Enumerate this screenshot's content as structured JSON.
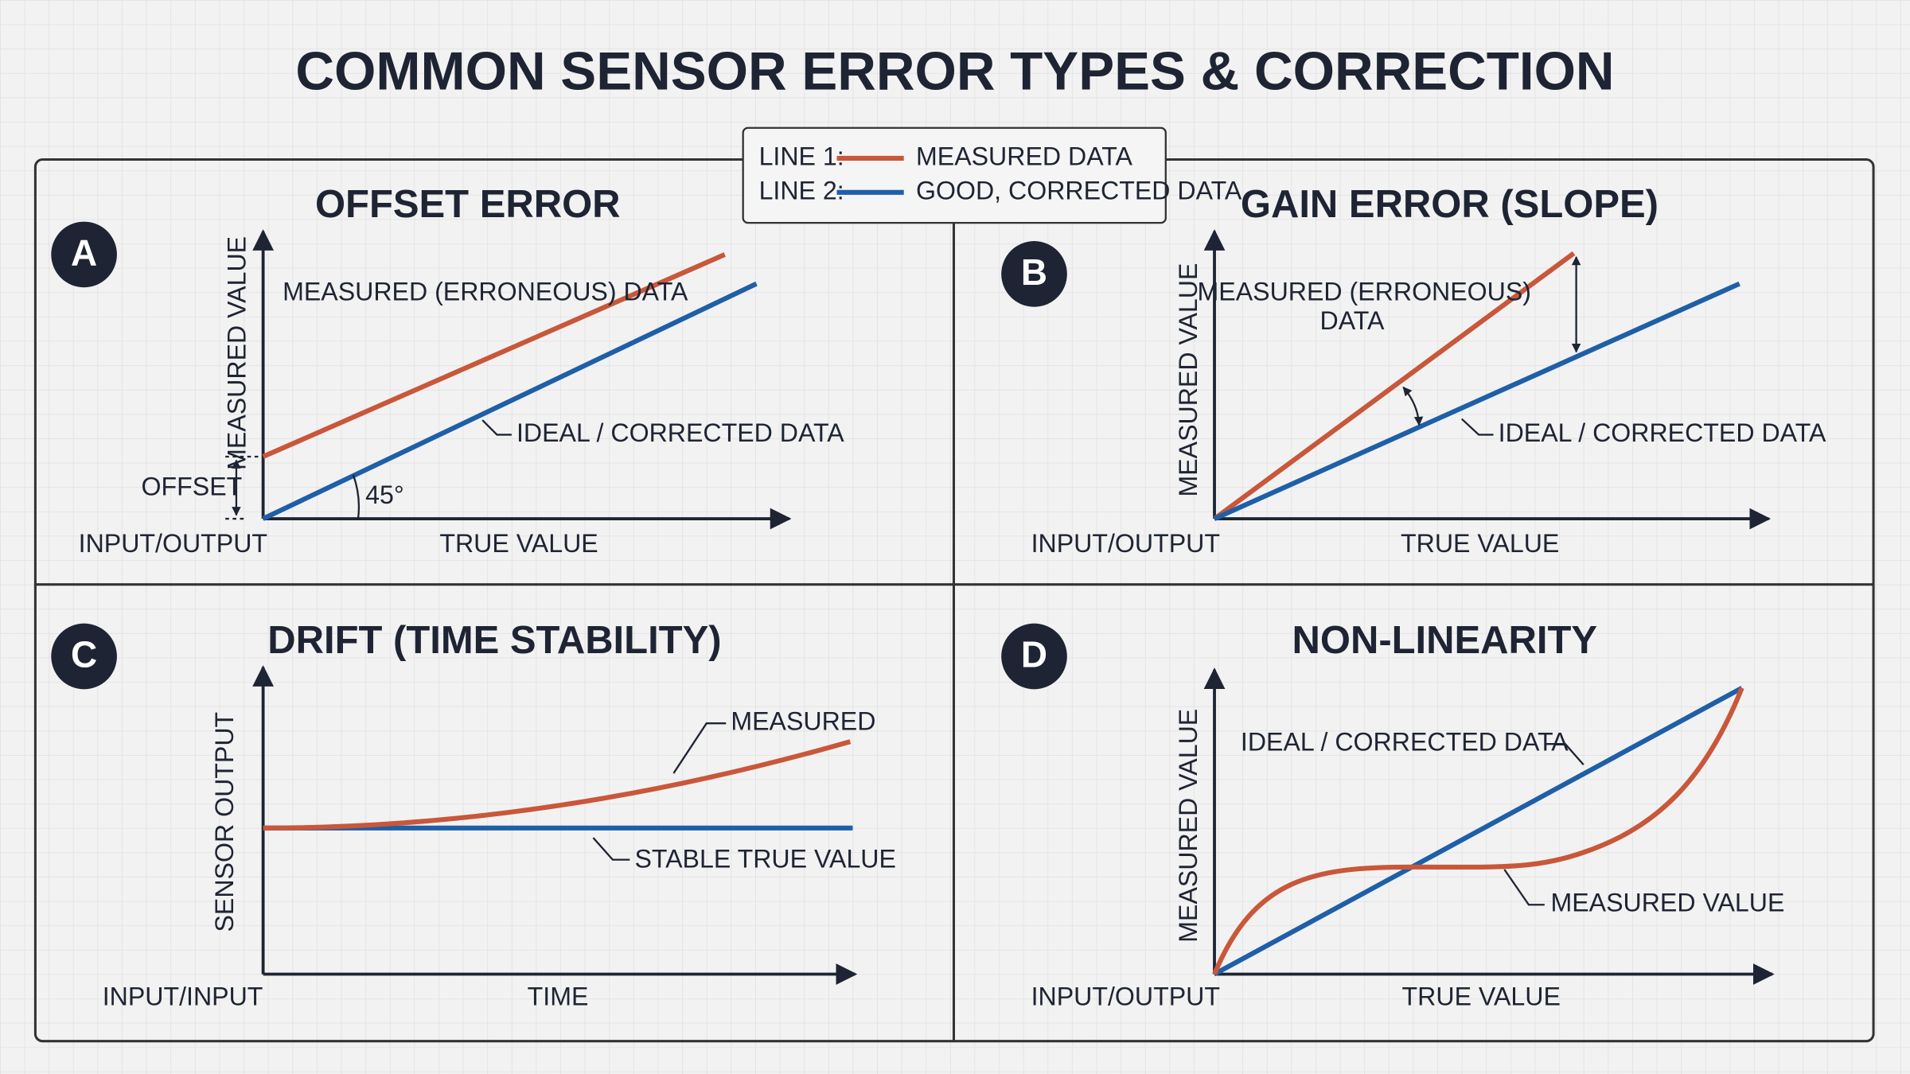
{
  "title": "COMMON SENSOR ERROR TYPES & CORRECTION",
  "legend": [
    {
      "label": "LINE 1:",
      "text": "MEASURED DATA"
    },
    {
      "label": "LINE 2:",
      "text": "GOOD, CORRECTED DATA"
    }
  ],
  "panels": [
    {
      "badge": "A",
      "title": "OFFSET ERROR",
      "y_label": "MEASURED VALUE",
      "x_label": "TRUE VALUE",
      "origin_label": "INPUT/OUTPUT",
      "annotations": [
        "MEASURED (ERRONEOUS) DATA",
        "IDEAL / CORRECTED DATA",
        "OFFSET",
        "45°"
      ]
    },
    {
      "badge": "B",
      "title": "GAIN ERROR (SLOPE)",
      "y_label": "MEASURED VALUE",
      "x_label": "TRUE VALUE",
      "origin_label": "INPUT/OUTPUT",
      "annotations": [
        "MEASURED (ERRONEOUS)",
        "DATA",
        "IDEAL / CORRECTED DATA"
      ]
    },
    {
      "badge": "C",
      "title": "DRIFT (TIME STABILITY)",
      "y_label": "SENSOR OUTPUT",
      "x_label": "TIME",
      "origin_label": "INPUT/INPUT",
      "annotations": [
        "MEASURED",
        "STABLE TRUE VALUE"
      ]
    },
    {
      "badge": "D",
      "title": "NON-LINEARITY",
      "y_label": "MEASURED VALUE",
      "x_label": "TRUE VALUE",
      "origin_label": "INPUT/OUTPUT",
      "annotations": [
        "IDEAL / CORRECTED DATA",
        "MEASURED VALUE"
      ]
    }
  ]
}
